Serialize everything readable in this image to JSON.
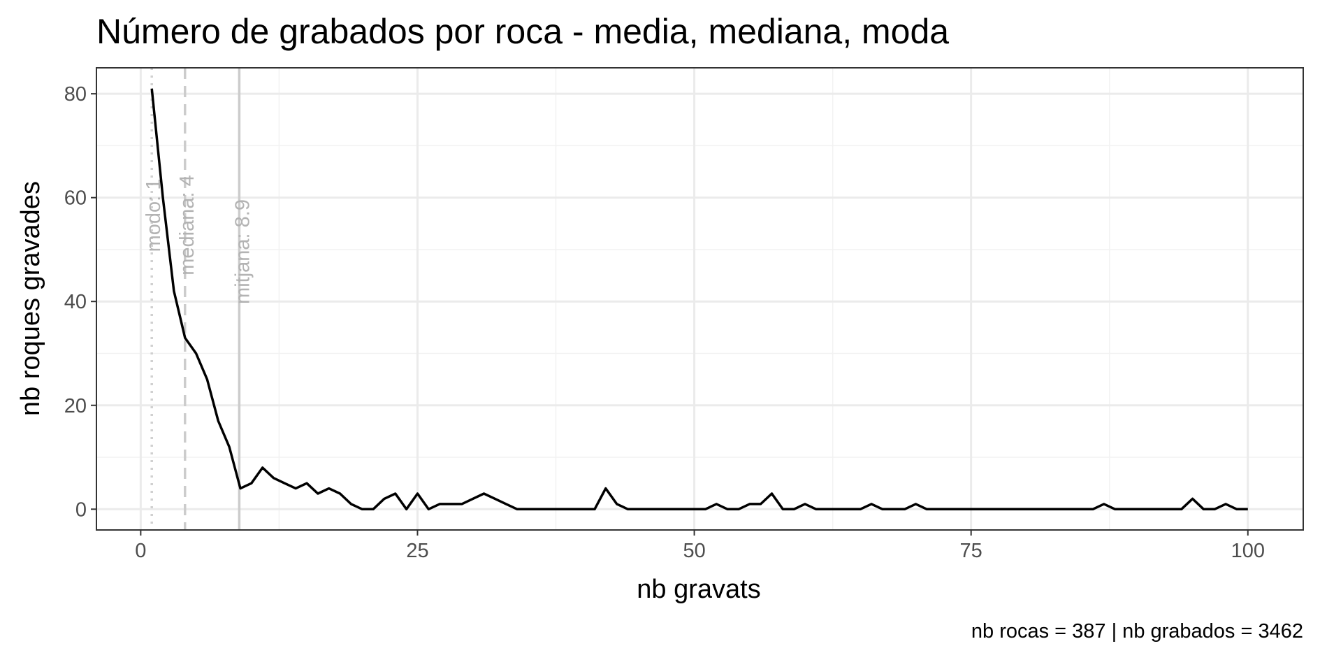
{
  "chart_data": {
    "type": "line",
    "title": "Número de grabados por roca - media, mediana, moda",
    "xlabel": "nb gravats",
    "ylabel": "nb roques gravades",
    "caption": "nb rocas = 387 | nb grabados = 3462",
    "xlim": [
      -4,
      105
    ],
    "ylim": [
      -4,
      85
    ],
    "x_ticks": [
      0,
      25,
      50,
      75,
      100
    ],
    "y_ticks": [
      0,
      20,
      40,
      60,
      80
    ],
    "x_tick_labels": [
      "0",
      "25",
      "50",
      "75",
      "100"
    ],
    "y_tick_labels": [
      "0",
      "20",
      "40",
      "60",
      "80"
    ],
    "grid": true,
    "line_color": "#000000",
    "reference_lines": [
      {
        "label": "modo: 1",
        "x": 1,
        "style": "dotted",
        "color": "#d0d0d0"
      },
      {
        "label": "mediana: 4",
        "x": 4,
        "style": "dashed",
        "color": "#cccccc"
      },
      {
        "label": "mitjana: 8.9",
        "x": 8.9,
        "style": "solid",
        "color": "#cccccc"
      }
    ],
    "series": [
      {
        "x": [
          1,
          2,
          3,
          4,
          5,
          6,
          7,
          8,
          9,
          10,
          11,
          12,
          13,
          14,
          15,
          16,
          17,
          18,
          19,
          20,
          21,
          22,
          23,
          24,
          25,
          26,
          27,
          28,
          29,
          30,
          31,
          32,
          33,
          34,
          35,
          36,
          37,
          38,
          39,
          40,
          41,
          42,
          43,
          44,
          45,
          46,
          47,
          48,
          49,
          50,
          51,
          52,
          53,
          54,
          55,
          56,
          57,
          58,
          59,
          60,
          61,
          62,
          63,
          64,
          65,
          66,
          67,
          68,
          69,
          70,
          71,
          72,
          73,
          74,
          75,
          76,
          77,
          78,
          79,
          80,
          81,
          82,
          83,
          84,
          85,
          86,
          87,
          88,
          89,
          90,
          91,
          92,
          93,
          94,
          95,
          96,
          97,
          98,
          99,
          100
        ],
        "values": [
          81,
          60,
          42,
          33,
          30,
          25,
          17,
          12,
          4,
          5,
          8,
          6,
          5,
          4,
          5,
          3,
          4,
          3,
          1,
          0,
          0,
          2,
          3,
          0,
          3,
          0,
          1,
          1,
          1,
          2,
          3,
          2,
          1,
          0,
          0,
          0,
          0,
          0,
          0,
          0,
          0,
          4,
          1,
          0,
          0,
          0,
          0,
          0,
          0,
          0,
          0,
          1,
          0,
          0,
          1,
          1,
          3,
          0,
          0,
          1,
          0,
          0,
          0,
          0,
          0,
          1,
          0,
          0,
          0,
          1,
          0,
          0,
          0,
          0,
          0,
          0,
          0,
          0,
          0,
          0,
          0,
          0,
          0,
          0,
          0,
          0,
          1,
          0,
          0,
          0,
          0,
          0,
          0,
          0,
          2,
          0,
          0,
          1,
          0,
          0
        ]
      }
    ]
  }
}
